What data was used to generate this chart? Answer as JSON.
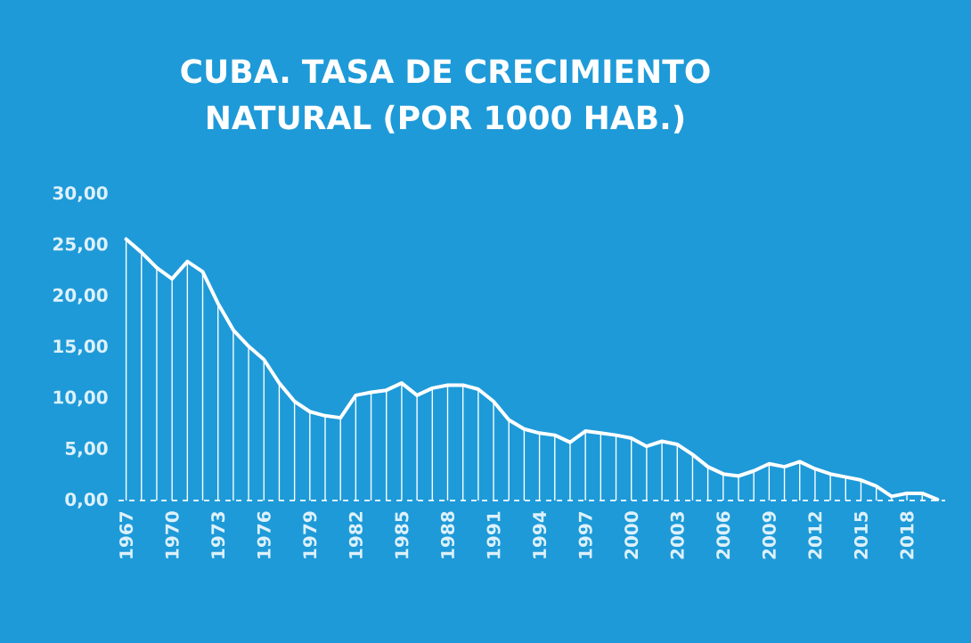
{
  "chart_data": {
    "type": "line",
    "title": "CUBA. TASA DE CRECIMIENTO NATURAL (POR 1000 HAB.)",
    "x": [
      1967,
      1968,
      1969,
      1970,
      1971,
      1972,
      1973,
      1974,
      1975,
      1976,
      1977,
      1978,
      1979,
      1980,
      1981,
      1982,
      1983,
      1984,
      1985,
      1986,
      1987,
      1988,
      1989,
      1990,
      1991,
      1992,
      1993,
      1994,
      1995,
      1996,
      1997,
      1998,
      1999,
      2000,
      2001,
      2002,
      2003,
      2004,
      2005,
      2006,
      2007,
      2008,
      2009,
      2010,
      2011,
      2012,
      2013,
      2014,
      2015,
      2016,
      2017,
      2018,
      2019,
      2020
    ],
    "series": [
      {
        "type": "bar",
        "color": "#ffffff",
        "values": [
          25.6,
          24.3,
          22.8,
          21.7,
          23.4,
          22.4,
          19.3,
          16.7,
          15.1,
          13.8,
          11.5,
          9.7,
          8.7,
          8.3,
          8.1,
          10.3,
          10.6,
          10.8,
          11.5,
          10.3,
          11.0,
          11.3,
          11.3,
          10.9,
          9.7,
          7.9,
          7.0,
          6.6,
          6.4,
          5.7,
          6.8,
          6.6,
          6.4,
          6.1,
          5.3,
          5.8,
          5.5,
          4.5,
          3.3,
          2.6,
          2.4,
          2.9,
          3.6,
          3.3,
          3.8,
          3.1,
          2.6,
          2.3,
          2.0,
          1.4,
          0.4,
          0.7,
          0.7,
          0.1
        ]
      },
      {
        "color": "#ffffff",
        "values": [
          25.6,
          24.3,
          22.8,
          21.7,
          23.4,
          22.4,
          19.3,
          16.7,
          15.1,
          13.8,
          11.5,
          9.7,
          8.7,
          8.3,
          8.1,
          10.3,
          10.6,
          10.8,
          11.5,
          10.3,
          11.0,
          11.3,
          11.3,
          10.9,
          9.7,
          7.9,
          7.0,
          6.6,
          6.4,
          5.7,
          6.8,
          6.6,
          6.4,
          6.1,
          5.3,
          5.8,
          5.5,
          4.5,
          3.3,
          2.6,
          2.4,
          2.9,
          3.6,
          3.3,
          3.8,
          3.1,
          2.6,
          2.3,
          2.0,
          1.4,
          0.4,
          0.7,
          0.7,
          0.1
        ]
      }
    ],
    "xlim": [
      1966.5,
      2020.5
    ],
    "ylim": [
      0,
      30
    ],
    "xticks": [
      1967,
      1970,
      1973,
      1976,
      1979,
      1982,
      1985,
      1988,
      1991,
      1994,
      1997,
      2000,
      2003,
      2006,
      2009,
      2012,
      2015,
      2018
    ],
    "yticks": [
      {
        "value": 0,
        "label": "0,00"
      },
      {
        "value": 5,
        "label": "5,00"
      },
      {
        "value": 10,
        "label": "10,00"
      },
      {
        "value": 15,
        "label": "15,00"
      },
      {
        "value": 20,
        "label": "20,00"
      },
      {
        "value": 25,
        "label": "25,00"
      },
      {
        "value": 30,
        "label": "30,00"
      }
    ],
    "grid": false,
    "marker": "none",
    "line_style": "solid"
  }
}
